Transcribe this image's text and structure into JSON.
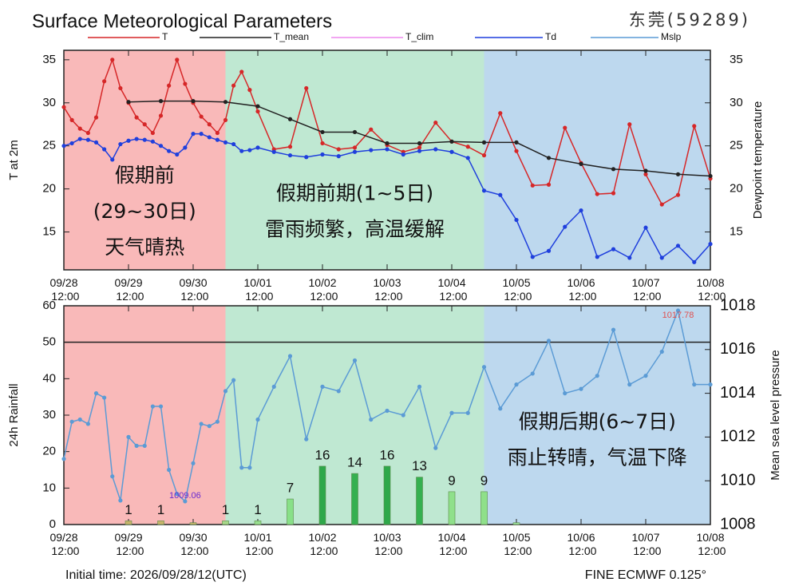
{
  "chart_data": [
    {
      "type": "line",
      "title": "Surface Meteorological Parameters",
      "subtitle": "东莞(59289)",
      "ylabel": "T at 2m",
      "y2label": "Dewpoint temperature",
      "xlim": [
        0,
        240
      ],
      "xticks": [
        {
          "value": 0,
          "label": "09/28\n12:00"
        },
        {
          "value": 24,
          "label": "09/29\n12:00"
        },
        {
          "value": 48,
          "label": "09/30\n12:00"
        },
        {
          "value": 72,
          "label": "10/01\n12:00"
        },
        {
          "value": 96,
          "label": "10/02\n12:00"
        },
        {
          "value": 120,
          "label": "10/03\n12:00"
        },
        {
          "value": 144,
          "label": "10/04\n12:00"
        },
        {
          "value": 168,
          "label": "10/05\n12:00"
        },
        {
          "value": 192,
          "label": "10/06\n12:00"
        },
        {
          "value": 216,
          "label": "10/07\n12:00"
        },
        {
          "value": 240,
          "label": "10/08\n12:00"
        }
      ],
      "ylim": [
        10.6,
        36.1
      ],
      "yticks": [
        15,
        20,
        25,
        30,
        35
      ],
      "y2lim": [
        10.6,
        36.1
      ],
      "y2ticks": [
        15,
        20,
        25,
        30,
        35
      ],
      "periods": [
        {
          "start": 0,
          "end": 60,
          "color": "#f9b9b9",
          "labels": [
            "假期前",
            "(29~30日)",
            "天气晴热"
          ]
        },
        {
          "start": 60,
          "end": 156,
          "color": "#bfe8d2",
          "labels": [
            "假期前期(1~5日)",
            "雷雨频繁，高温缓解"
          ]
        },
        {
          "start": 156,
          "end": 240,
          "color": "#bdd8ee",
          "labels": []
        }
      ],
      "series": [
        {
          "name": "T",
          "color": "#d62728",
          "x": [
            0,
            3,
            6,
            9,
            12,
            15,
            18,
            21,
            24,
            27,
            30,
            33,
            36,
            39,
            42,
            45,
            48,
            51,
            54,
            57,
            60,
            63,
            66,
            69,
            72,
            78,
            84,
            90,
            96,
            102,
            108,
            114,
            120,
            126,
            132,
            138,
            144,
            150,
            156,
            162,
            168,
            174,
            180,
            186,
            192,
            198,
            204,
            210,
            216,
            222,
            228,
            234,
            240
          ],
          "values": [
            29.5,
            28,
            27,
            26.5,
            28.3,
            32.5,
            35,
            31.7,
            30,
            28.3,
            27.5,
            26.5,
            28.5,
            32,
            35,
            32.2,
            30,
            28.4,
            27.5,
            26.5,
            28,
            32,
            33.6,
            31.5,
            29,
            24.6,
            24.9,
            31.7,
            25.3,
            24.6,
            24.8,
            26.9,
            25.1,
            24.3,
            24.8,
            27.7,
            25.5,
            24.9,
            23.9,
            28.8,
            24.4,
            20.4,
            20.5,
            27.1,
            23,
            19.4,
            19.5,
            27.5,
            21.7,
            18.2,
            19.3,
            27.3,
            21.2
          ]
        },
        {
          "name": "T_mean",
          "color": "#222222",
          "x": [
            24,
            36,
            48,
            60,
            72,
            84,
            96,
            108,
            120,
            132,
            144,
            156,
            168,
            180,
            192,
            204,
            216,
            228,
            240
          ],
          "values": [
            30.1,
            30.2,
            30.2,
            30.1,
            29.6,
            28.1,
            26.6,
            26.6,
            25.3,
            25.3,
            25.5,
            25.4,
            25.4,
            23.6,
            22.9,
            22.3,
            22.1,
            21.7,
            21.5
          ]
        },
        {
          "name": "T_clim",
          "color": "#ee88ee",
          "x": [],
          "values": []
        },
        {
          "name": "Td",
          "color": "#1f3fdd",
          "axis": "y2",
          "x": [
            0,
            3,
            6,
            9,
            12,
            15,
            18,
            21,
            24,
            27,
            30,
            33,
            36,
            39,
            42,
            45,
            48,
            51,
            54,
            57,
            60,
            63,
            66,
            69,
            72,
            78,
            84,
            90,
            96,
            102,
            108,
            114,
            120,
            126,
            132,
            138,
            144,
            150,
            156,
            162,
            168,
            174,
            180,
            186,
            192,
            198,
            204,
            210,
            216,
            222,
            228,
            234,
            240
          ],
          "values": [
            25,
            25.3,
            25.8,
            25.7,
            25.4,
            24.6,
            23.4,
            25.2,
            25.6,
            25.8,
            25.7,
            25.5,
            25,
            24.4,
            24,
            24.8,
            26.4,
            26.4,
            26,
            25.7,
            25.4,
            25.2,
            24.4,
            24.5,
            24.8,
            24.3,
            23.9,
            23.7,
            24,
            23.8,
            24.3,
            24.5,
            24.6,
            24,
            24.4,
            24.6,
            24.3,
            23.6,
            19.8,
            19.3,
            16.4,
            12.1,
            12.8,
            15.6,
            17.5,
            12.1,
            13,
            12,
            15.5,
            12,
            13.4,
            11.5,
            13.6
          ]
        }
      ]
    },
    {
      "type": "combo",
      "ylabel": "24h Rainfall",
      "y2label": "Mean sea level pressure",
      "xlim": [
        0,
        240
      ],
      "xticks": [
        {
          "value": 0,
          "label": "09/28\n12:00"
        },
        {
          "value": 24,
          "label": "09/29\n12:00"
        },
        {
          "value": 48,
          "label": "09/30\n12:00"
        },
        {
          "value": 72,
          "label": "10/01\n12:00"
        },
        {
          "value": 96,
          "label": "10/02\n12:00"
        },
        {
          "value": 120,
          "label": "10/03\n12:00"
        },
        {
          "value": 144,
          "label": "10/04\n12:00"
        },
        {
          "value": 168,
          "label": "10/05\n12:00"
        },
        {
          "value": 192,
          "label": "10/06\n12:00"
        },
        {
          "value": 216,
          "label": "10/07\n12:00"
        },
        {
          "value": 240,
          "label": "10/08\n12:00"
        }
      ],
      "ylim": [
        0,
        60
      ],
      "yticks": [
        0,
        10,
        20,
        30,
        40,
        50,
        60
      ],
      "y2lim": [
        1008,
        1018
      ],
      "y2ticks": [
        1008,
        1010,
        1012,
        1014,
        1016,
        1018
      ],
      "reference_line": 50,
      "periods": [
        {
          "start": 0,
          "end": 60,
          "color": "#f9b9b9",
          "labels": []
        },
        {
          "start": 60,
          "end": 156,
          "color": "#bfe8d2",
          "labels": []
        },
        {
          "start": 156,
          "end": 240,
          "color": "#bdd8ee",
          "labels": [
            "假期后期(6~7日)",
            "雨止转晴，气温下降"
          ]
        }
      ],
      "bars": {
        "x": [
          24,
          36,
          48,
          60,
          72,
          84,
          96,
          108,
          120,
          132,
          144,
          156,
          168
        ],
        "values": [
          1,
          1,
          0.5,
          1,
          1,
          7,
          16,
          14,
          16,
          13,
          9,
          9,
          0.5
        ],
        "value_labels": [
          "1",
          "1",
          null,
          "1",
          "1",
          "7",
          "16",
          "14",
          "16",
          "13",
          "9",
          "9",
          null
        ],
        "colors": [
          "#c8b46a",
          "#c8b46a",
          "#c8b46a",
          "#a8d88a",
          "#98e090",
          "#88e088",
          "#2ea84a",
          "#35b050",
          "#2ea84a",
          "#35b050",
          "#8fe08a",
          "#8fe08a",
          "#9be09a"
        ]
      },
      "series": [
        {
          "name": "Mslp",
          "color": "#5b9bd5",
          "axis": "y2",
          "x": [
            0,
            3,
            6,
            9,
            12,
            15,
            18,
            21,
            24,
            27,
            30,
            33,
            36,
            39,
            42,
            45,
            48,
            51,
            54,
            57,
            60,
            63,
            66,
            69,
            72,
            78,
            84,
            90,
            96,
            102,
            108,
            114,
            120,
            126,
            132,
            138,
            144,
            150,
            156,
            162,
            168,
            174,
            180,
            186,
            192,
            198,
            204,
            210,
            216,
            222,
            228,
            234,
            240
          ],
          "values": [
            1011,
            1012.7,
            1012.8,
            1012.6,
            1014,
            1013.8,
            1010.2,
            1009.1,
            1012,
            1011.6,
            1011.6,
            1013.4,
            1013.4,
            1010.5,
            1009.4,
            1009.06,
            1010.8,
            1012.6,
            1012.5,
            1012.7,
            1014.1,
            1014.6,
            1010.6,
            1010.6,
            1012.8,
            1014.3,
            1015.7,
            1011.9,
            1014.3,
            1014.1,
            1015.5,
            1012.8,
            1013.2,
            1013,
            1014.3,
            1011.5,
            1013.1,
            1013.1,
            1015.2,
            1013.3,
            1014.4,
            1014.9,
            1016.4,
            1014,
            1014.2,
            1014.8,
            1016.9,
            1014.4,
            1014.8,
            1015.9,
            1017.78,
            1014.4,
            1014.4
          ]
        }
      ],
      "annotations": [
        {
          "text": "1017.78",
          "x": 228,
          "y": 1017.78,
          "color": "#e05050"
        },
        {
          "text": "1009.06",
          "x": 45,
          "y": 1009.06,
          "color": "#6a2ad0"
        }
      ],
      "footer": {
        "left": "Initial time: 2026/09/28/12(UTC)",
        "right": "FINE ECMWF 0.125°"
      }
    }
  ]
}
